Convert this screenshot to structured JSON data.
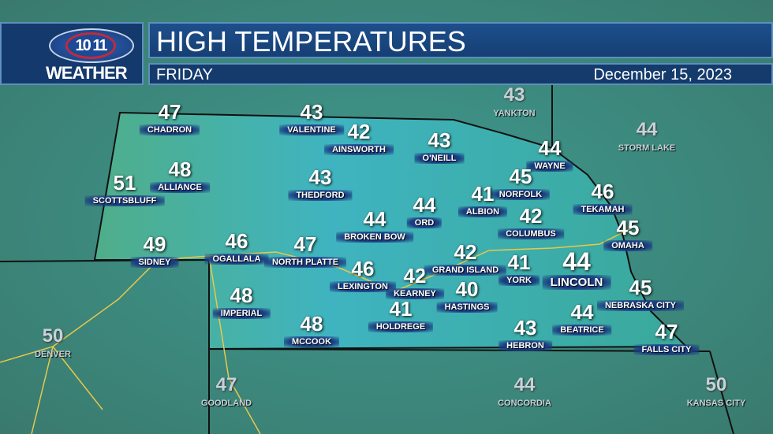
{
  "header": {
    "logo_number": "10 11",
    "logo_text": "WEATHER",
    "title": "HIGH TEMPERATURES",
    "day": "FRIDAY",
    "date": "December 15, 2023"
  },
  "colors": {
    "map_fill": "#3f8a86",
    "state_fill": "#3ba7b0",
    "header_blue": "#1d4f8c",
    "label_blue": "#1a3c80"
  },
  "cities": [
    {
      "name": "CHADRON",
      "temp": "47"
    },
    {
      "name": "VALENTINE",
      "temp": "43"
    },
    {
      "name": "AINSWORTH",
      "temp": "42"
    },
    {
      "name": "O'NEILL",
      "temp": "43"
    },
    {
      "name": "WAYNE",
      "temp": "44"
    },
    {
      "name": "NORFOLK",
      "temp": "45"
    },
    {
      "name": "TEKAMAH",
      "temp": "46"
    },
    {
      "name": "SCOTTSBLUFF",
      "temp": "51"
    },
    {
      "name": "ALLIANCE",
      "temp": "48"
    },
    {
      "name": "THEDFORD",
      "temp": "43"
    },
    {
      "name": "BROKEN BOW",
      "temp": "44"
    },
    {
      "name": "ORD",
      "temp": "44"
    },
    {
      "name": "ALBION",
      "temp": "41"
    },
    {
      "name": "COLUMBUS",
      "temp": "42"
    },
    {
      "name": "OMAHA",
      "temp": "45"
    },
    {
      "name": "SIDNEY",
      "temp": "49"
    },
    {
      "name": "OGALLALA",
      "temp": "46"
    },
    {
      "name": "NORTH PLATTE",
      "temp": "47"
    },
    {
      "name": "LEXINGTON",
      "temp": "46"
    },
    {
      "name": "KEARNEY",
      "temp": "42"
    },
    {
      "name": "GRAND ISLAND",
      "temp": "42"
    },
    {
      "name": "HASTINGS",
      "temp": "40"
    },
    {
      "name": "YORK",
      "temp": "41"
    },
    {
      "name": "LINCOLN",
      "temp": "44"
    },
    {
      "name": "NEBRASKA CITY",
      "temp": "45"
    },
    {
      "name": "IMPERIAL",
      "temp": "48"
    },
    {
      "name": "HOLDREGE",
      "temp": "41"
    },
    {
      "name": "MCCOOK",
      "temp": "48"
    },
    {
      "name": "HEBRON",
      "temp": "43"
    },
    {
      "name": "BEATRICE",
      "temp": "44"
    },
    {
      "name": "FALLS CITY",
      "temp": "47"
    }
  ],
  "outside_cities": [
    {
      "name": "YANKTON",
      "temp": "43"
    },
    {
      "name": "STORM LAKE",
      "temp": "44"
    },
    {
      "name": "DENVER",
      "temp": "50"
    },
    {
      "name": "GOODLAND",
      "temp": "47"
    },
    {
      "name": "CONCORDIA",
      "temp": "44"
    },
    {
      "name": "KANSAS CITY",
      "temp": "50"
    }
  ]
}
